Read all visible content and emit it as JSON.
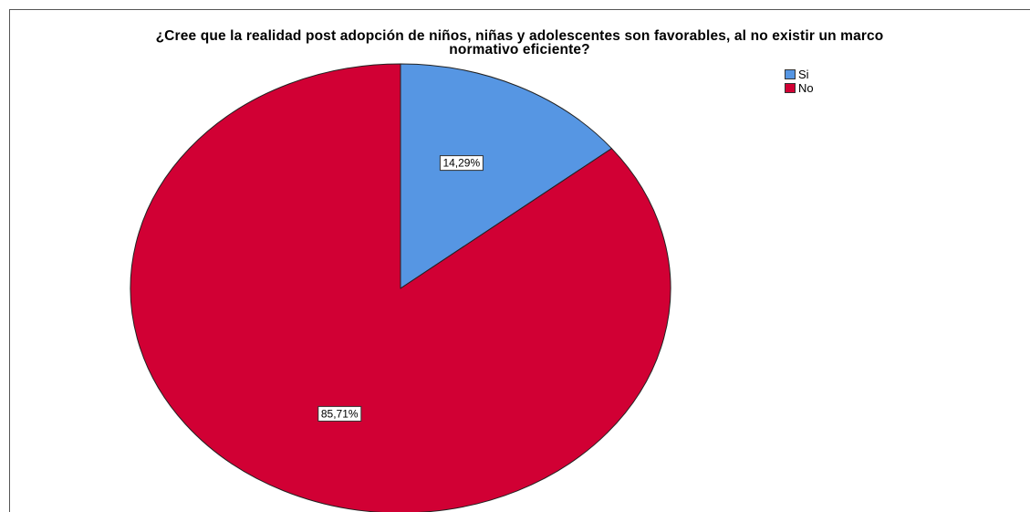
{
  "chart_data": {
    "type": "pie",
    "title_lines": [
      "¿Cree que la realidad post adopción de niños, niñas y adolescentes son favorables, al no existir un marco",
      "normativo eficiente?"
    ],
    "categories": [
      "Si",
      "No"
    ],
    "values": [
      14.29,
      85.71
    ],
    "data_labels": [
      "14,29%",
      "85,71%"
    ],
    "colors": [
      "#5696e3",
      "#d10034"
    ],
    "start_angle_deg": 0,
    "direction": "clockwise",
    "legend_position": "top-right"
  }
}
